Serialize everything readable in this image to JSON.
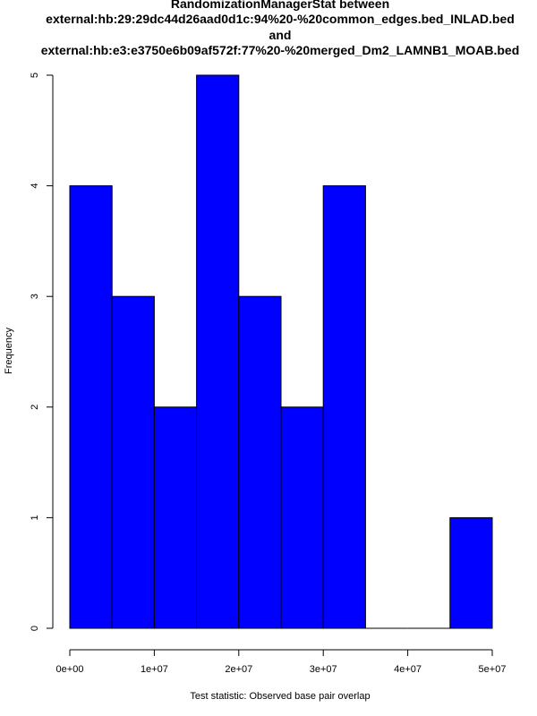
{
  "chart_data": {
    "type": "histogram",
    "title_lines": [
      "RandomizationManagerStat between",
      "external:hb:29:29dc44d26aad0d1c:94%20-%20common_edges.bed_INLAD.bed",
      "and",
      "external:hb:e3:e3750e6b09af572f:77%20-%20merged_Dm2_LAMNB1_MOAB.bed"
    ],
    "xlabel": "Test statistic: Observed base pair overlap",
    "ylabel": "Frequency",
    "bin_edges": [
      0,
      5000000,
      10000000,
      15000000,
      20000000,
      25000000,
      30000000,
      35000000,
      40000000,
      45000000,
      50000000
    ],
    "counts": [
      4,
      3,
      2,
      5,
      3,
      2,
      4,
      0,
      0,
      1
    ],
    "xlim": [
      0,
      50000000
    ],
    "ylim": [
      0,
      5
    ],
    "x_ticks": [
      0,
      10000000,
      20000000,
      30000000,
      40000000,
      50000000
    ],
    "x_tick_labels": [
      "0e+00",
      "1e+07",
      "2e+07",
      "3e+07",
      "4e+07",
      "5e+07"
    ],
    "y_ticks": [
      0,
      1,
      2,
      3,
      4,
      5
    ],
    "y_tick_labels": [
      "0",
      "1",
      "2",
      "3",
      "4",
      "5"
    ],
    "bar_color": "#0000ff",
    "border_color": "#000000",
    "grid": false
  }
}
